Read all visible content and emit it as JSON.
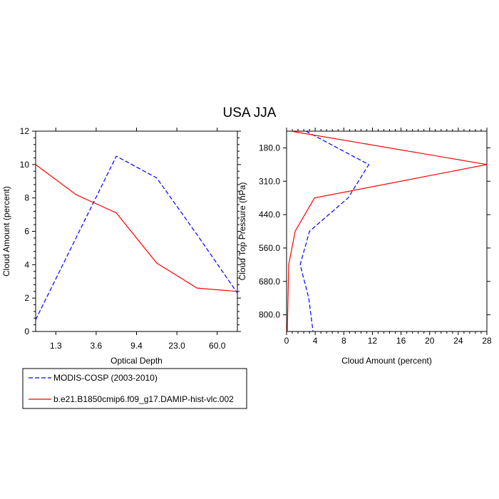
{
  "title": "USA JJA",
  "chart_data": [
    {
      "type": "line",
      "xlabel": "Optical Depth",
      "ylabel": "Cloud Amount (percent)",
      "x_tick_labels": [
        "1.3",
        "3.6",
        "9.4",
        "23.0",
        "60.0"
      ],
      "y_ticks": [
        "0",
        "2",
        "4",
        "6",
        "8",
        "10",
        "12"
      ],
      "ylim": [
        0,
        12
      ],
      "series": [
        {
          "name": "MODIS-COSP (2003-2010)",
          "color": "#0000ff",
          "dash": "dashed",
          "x": [
            "0.3-1.3",
            "1.3-3.6",
            "3.6-9.4",
            "9.4-23.0",
            "23.0-60.0",
            "60.0+"
          ],
          "values": [
            0.7,
            5.6,
            10.5,
            9.2,
            5.8,
            2.3
          ]
        },
        {
          "name": "b.e21.B1850cmip6.f09_g17.DAMIP-hist-vlc.002",
          "color": "#ff0000",
          "dash": "solid",
          "x": [
            "0.3-1.3",
            "1.3-3.6",
            "3.6-9.4",
            "9.4-23.0",
            "23.0-60.0",
            "60.0+"
          ],
          "values": [
            10.0,
            8.2,
            7.1,
            4.1,
            2.6,
            2.4
          ]
        }
      ]
    },
    {
      "type": "line",
      "xlabel": "Cloud Amount (percent)",
      "ylabel": "Cloud Top Pressure (hPa)",
      "x_ticks": [
        "0",
        "4",
        "8",
        "12",
        "16",
        "20",
        "24",
        "28"
      ],
      "xlim": [
        0,
        28
      ],
      "y_tick_labels": [
        "180.0",
        "310.0",
        "440.0",
        "560.0",
        "680.0",
        "800.0"
      ],
      "series": [
        {
          "name": "MODIS-COSP (2003-2010)",
          "color": "#0000ff",
          "dash": "dashed",
          "y": [
            "50-180",
            "180-310",
            "310-440",
            "440-560",
            "560-680",
            "680-800",
            "800-1000"
          ],
          "values": [
            2.7,
            11.5,
            8.6,
            3.2,
            1.9,
            3.1,
            3.7
          ]
        },
        {
          "name": "b.e21.B1850cmip6.f09_g17.DAMIP-hist-vlc.002",
          "color": "#ff0000",
          "dash": "solid",
          "y": [
            "50-180",
            "180-310",
            "310-440",
            "440-560",
            "560-680",
            "680-800",
            "800-1000"
          ],
          "values": [
            0.6,
            28.0,
            3.9,
            1.2,
            0.3,
            0.2,
            0.1
          ]
        }
      ]
    }
  ],
  "legend": {
    "entries": [
      {
        "label": "MODIS-COSP (2003-2010)",
        "color": "#0000ff",
        "dash": "dashed"
      },
      {
        "label": "b.e21.B1850cmip6.f09_g17.DAMIP-hist-vlc.002",
        "color": "#ff0000",
        "dash": "solid"
      }
    ]
  }
}
